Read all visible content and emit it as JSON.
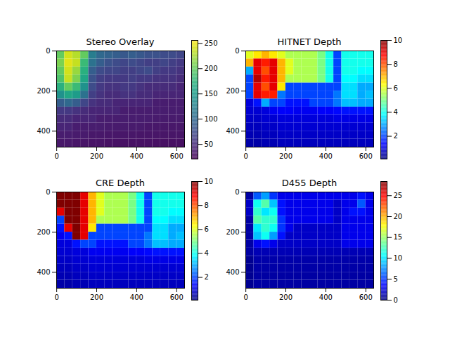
{
  "chart_data": [
    {
      "type": "heatmap",
      "title": "Stereo Overlay",
      "color": "viridis",
      "xlim": [
        -0.5,
        639.5
      ],
      "ylim": [
        479.5,
        -0.5
      ],
      "xticks": [
        0,
        200,
        400,
        600
      ],
      "yticks": [
        0,
        200,
        400
      ],
      "colorbar": {
        "range": [
          21,
          256
        ],
        "ticks": [
          50,
          100,
          150,
          200,
          250
        ]
      },
      "cells": [
        [
          200,
          240,
          230,
          200,
          120,
          100,
          95,
          90,
          85,
          90,
          85,
          80,
          80,
          75,
          75,
          70
        ],
        [
          210,
          245,
          235,
          180,
          110,
          90,
          80,
          75,
          70,
          75,
          70,
          65,
          65,
          70,
          65,
          60
        ],
        [
          200,
          240,
          220,
          170,
          90,
          75,
          70,
          70,
          65,
          65,
          70,
          75,
          65,
          60,
          60,
          55
        ],
        [
          190,
          235,
          210,
          160,
          80,
          65,
          60,
          60,
          60,
          65,
          60,
          60,
          55,
          55,
          55,
          50
        ],
        [
          170,
          200,
          180,
          140,
          75,
          60,
          55,
          55,
          60,
          60,
          55,
          50,
          50,
          50,
          50,
          45
        ],
        [
          140,
          160,
          150,
          110,
          65,
          55,
          50,
          50,
          55,
          55,
          50,
          50,
          45,
          45,
          45,
          45
        ],
        [
          90,
          100,
          90,
          70,
          55,
          50,
          50,
          45,
          45,
          45,
          45,
          45,
          40,
          40,
          40,
          40
        ],
        [
          60,
          60,
          55,
          50,
          45,
          45,
          45,
          45,
          40,
          40,
          40,
          40,
          40,
          40,
          40,
          40
        ],
        [
          50,
          50,
          45,
          45,
          45,
          40,
          40,
          40,
          40,
          40,
          40,
          40,
          38,
          38,
          38,
          38
        ],
        [
          45,
          45,
          40,
          40,
          40,
          40,
          38,
          38,
          38,
          38,
          38,
          36,
          36,
          36,
          36,
          36
        ],
        [
          40,
          40,
          38,
          38,
          36,
          36,
          35,
          35,
          35,
          35,
          34,
          34,
          34,
          34,
          34,
          34
        ],
        [
          36,
          36,
          34,
          34,
          33,
          33,
          32,
          32,
          32,
          32,
          32,
          32,
          31,
          31,
          31,
          31
        ]
      ]
    },
    {
      "type": "heatmap",
      "title": "HITNET Depth",
      "color": "jet",
      "xlim": [
        -0.5,
        639.5
      ],
      "ylim": [
        479.5,
        -0.5
      ],
      "xticks": [
        0,
        200,
        400,
        600
      ],
      "yticks": [
        0,
        200,
        400
      ],
      "colorbar": {
        "range": [
          0.1,
          10
        ],
        "ticks": [
          2,
          4,
          6,
          8,
          10
        ]
      },
      "cells": [
        [
          6,
          6.5,
          7,
          6.5,
          6,
          5.5,
          5.5,
          5.5,
          5.5,
          5,
          4,
          2,
          4,
          4,
          4,
          4
        ],
        [
          7,
          9,
          8.5,
          9,
          7,
          6,
          5.5,
          5.5,
          5.5,
          5,
          4,
          2,
          4,
          4,
          4,
          4
        ],
        [
          3,
          9,
          8,
          9,
          7,
          6,
          5.5,
          5.5,
          5.5,
          5,
          4,
          2,
          4,
          4,
          3.8,
          3.8
        ],
        [
          2,
          9.5,
          8.5,
          9,
          7,
          5.5,
          5.5,
          5.5,
          5.5,
          5,
          4,
          2,
          3.8,
          3.8,
          3.5,
          3.5
        ],
        [
          2,
          9,
          8,
          9,
          6.5,
          2,
          2,
          2,
          2,
          2,
          2,
          2,
          3.5,
          3.5,
          3,
          3
        ],
        [
          2,
          9,
          8.5,
          8.5,
          2.5,
          2,
          2,
          2,
          2,
          2,
          2,
          2.5,
          3.5,
          3.5,
          3,
          3.2
        ],
        [
          1,
          1.5,
          3,
          2,
          2,
          1.5,
          1.5,
          1.5,
          2,
          2,
          2,
          2.5,
          3.2,
          3.2,
          3,
          3
        ],
        [
          0.9,
          0.9,
          1,
          1.2,
          1.3,
          1.3,
          1.2,
          1.2,
          1.2,
          1.3,
          1.3,
          1.4,
          1.5,
          1.5,
          1.5,
          1.5
        ],
        [
          0.8,
          0.8,
          0.9,
          0.9,
          1,
          1,
          1,
          1,
          1,
          1,
          1,
          1.1,
          1.1,
          1.1,
          1.1,
          1.1
        ],
        [
          0.7,
          0.7,
          0.8,
          0.8,
          0.9,
          0.9,
          0.9,
          0.9,
          0.9,
          0.9,
          0.9,
          0.9,
          0.9,
          0.9,
          0.9,
          0.9
        ],
        [
          0.6,
          0.6,
          0.7,
          0.7,
          0.8,
          0.8,
          0.8,
          0.8,
          0.8,
          0.8,
          0.8,
          0.8,
          0.8,
          0.8,
          0.8,
          0.8
        ],
        [
          0.5,
          0.5,
          0.6,
          0.6,
          0.7,
          0.7,
          0.7,
          0.7,
          0.7,
          0.7,
          0.7,
          0.7,
          0.7,
          0.7,
          0.7,
          0.7
        ]
      ]
    },
    {
      "type": "heatmap",
      "title": "CRE Depth",
      "color": "jet",
      "xlim": [
        -0.5,
        639.5
      ],
      "ylim": [
        479.5,
        -0.5
      ],
      "xticks": [
        0,
        200,
        400,
        600
      ],
      "yticks": [
        0,
        200,
        400
      ],
      "colorbar": {
        "range": [
          0.1,
          10
        ],
        "ticks": [
          2,
          4,
          6,
          8,
          10
        ]
      },
      "cells": [
        [
          10,
          10,
          10,
          9,
          7,
          6,
          5.5,
          5.5,
          5.5,
          5,
          4,
          2,
          4,
          4,
          4,
          4
        ],
        [
          10,
          10,
          10,
          9,
          7,
          6,
          5.5,
          5.5,
          5.5,
          5,
          4,
          2,
          4,
          4,
          4,
          4
        ],
        [
          9,
          10,
          10,
          9,
          7,
          6,
          5.5,
          5.5,
          5.5,
          5,
          4,
          2,
          4,
          4,
          3.8,
          3.8
        ],
        [
          2,
          10,
          10,
          9,
          7,
          5.5,
          5.5,
          5.5,
          5.5,
          5,
          4,
          2,
          3.8,
          3.8,
          3.5,
          3.5
        ],
        [
          1.5,
          9,
          10,
          9,
          6.5,
          2,
          2,
          2,
          2,
          2,
          2,
          2,
          3.5,
          3.5,
          3,
          3
        ],
        [
          1.2,
          1.5,
          10,
          9,
          2,
          2,
          2,
          2,
          2,
          2,
          2,
          2.5,
          3.5,
          3.5,
          3,
          3.2
        ],
        [
          1,
          1,
          1.5,
          2,
          2,
          1.5,
          1.5,
          1.5,
          1.5,
          2,
          2,
          2.5,
          3.2,
          3.2,
          3,
          3
        ],
        [
          0.9,
          0.9,
          1,
          1,
          1.2,
          1.2,
          1.2,
          1.2,
          1.2,
          1.3,
          1.3,
          1.4,
          1.5,
          1.5,
          1.5,
          1.5
        ],
        [
          0.8,
          0.8,
          0.9,
          0.9,
          1,
          1,
          1,
          1,
          1,
          1,
          1,
          1.1,
          1.1,
          1.1,
          1.1,
          1.1
        ],
        [
          0.7,
          0.7,
          0.8,
          0.8,
          0.9,
          0.9,
          0.9,
          0.9,
          0.9,
          0.9,
          0.9,
          0.9,
          0.9,
          0.9,
          0.9,
          0.9
        ],
        [
          0.6,
          0.6,
          0.7,
          0.7,
          0.8,
          0.8,
          0.8,
          0.8,
          0.8,
          0.8,
          0.8,
          0.8,
          0.8,
          0.8,
          0.8,
          0.8
        ],
        [
          0.5,
          0.5,
          0.6,
          0.6,
          0.7,
          0.7,
          0.7,
          0.7,
          0.7,
          0.7,
          0.7,
          0.7,
          0.7,
          0.7,
          0.7,
          0.7
        ]
      ]
    },
    {
      "type": "heatmap",
      "title": "D455 Depth",
      "color": "jet",
      "xlim": [
        -0.5,
        639.5
      ],
      "ylim": [
        479.5,
        -0.5
      ],
      "xticks": [
        0,
        200,
        400,
        600
      ],
      "yticks": [
        0,
        200,
        400
      ],
      "colorbar": {
        "range": [
          0,
          28.4
        ],
        "ticks": [
          0,
          5,
          10,
          15,
          20,
          25
        ]
      },
      "cells": [
        [
          1,
          6,
          8,
          5,
          3,
          3,
          3,
          3,
          3,
          3,
          3,
          3,
          3,
          3,
          4,
          3
        ],
        [
          2,
          11,
          13,
          9,
          4,
          3,
          3,
          3,
          3,
          3,
          3,
          2,
          3,
          3,
          6,
          3
        ],
        [
          2,
          12,
          10,
          11,
          4,
          3,
          3,
          3,
          3,
          3,
          3,
          2,
          3,
          4,
          4,
          3
        ],
        [
          1,
          13,
          12,
          12,
          5,
          3,
          3,
          3,
          3,
          3,
          3,
          2,
          3,
          3,
          3,
          3
        ],
        [
          1,
          10,
          12,
          11,
          5,
          3,
          2,
          2,
          2,
          2,
          2,
          2,
          3,
          3,
          3,
          3
        ],
        [
          1,
          9,
          11,
          8,
          4,
          2,
          2,
          2,
          2,
          2,
          2,
          2,
          3,
          3,
          3,
          3
        ],
        [
          1,
          3,
          4,
          3,
          2,
          2,
          2,
          2,
          2,
          2,
          2,
          2,
          3,
          3,
          3,
          3
        ],
        [
          1,
          1.5,
          1.5,
          1.5,
          1.5,
          1.5,
          1.5,
          1.5,
          1.5,
          1.5,
          1.5,
          1.5,
          1.5,
          1.5,
          1.5,
          1.5
        ],
        [
          0.5,
          1.2,
          1.2,
          1.2,
          1.2,
          1.2,
          1.2,
          1.2,
          1.2,
          1.2,
          1.2,
          1.2,
          1.2,
          1.2,
          1.2,
          1.2
        ],
        [
          0.5,
          1.1,
          1.1,
          1.1,
          1.1,
          1.1,
          1.1,
          1.1,
          1.1,
          1.1,
          1.1,
          1.1,
          1.1,
          1.1,
          1.1,
          1.1
        ],
        [
          0.5,
          1,
          1,
          1,
          1,
          1,
          1,
          1,
          1,
          1,
          1,
          1,
          1,
          1,
          1,
          1
        ],
        [
          0.5,
          1,
          1,
          1,
          1,
          1,
          1,
          1,
          1,
          1,
          1,
          1,
          1,
          1,
          1,
          1
        ]
      ]
    }
  ]
}
